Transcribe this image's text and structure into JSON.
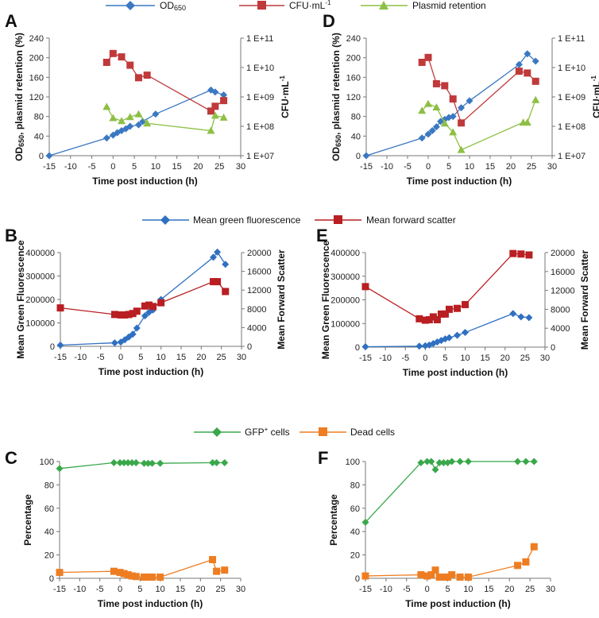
{
  "colors": {
    "od": "#3b78c2",
    "cfu": "#c0393b",
    "plasmid": "#8dbf45",
    "fluo": "#2f70c1",
    "scatter": "#b81e22",
    "gfp": "#39a84a",
    "dead": "#ee7d22",
    "axis": "#777777"
  },
  "legends": {
    "row1": {
      "od": "OD650",
      "cfu": "CFU·mL-1",
      "plasmid": "Plasmid retention"
    },
    "row2": {
      "fluo": "Mean green fluorescence",
      "scatter": "Mean forward scatter"
    },
    "row3": {
      "gfp": "GFP+ cells",
      "dead": "Dead cells"
    }
  },
  "chart_data": [
    {
      "panel": "A",
      "type": "line",
      "xlabel": "Time post induction (h)",
      "ylabel": "OD650, plasmid retention (%)",
      "y2label": "CFU·mL-1",
      "xlim": [
        -15,
        30
      ],
      "xticks": [
        "-15",
        "-10",
        "-5",
        "0",
        "5",
        "10",
        "15",
        "20",
        "25",
        "30"
      ],
      "ylim": [
        0,
        240
      ],
      "yticks": [
        "0",
        "40",
        "80",
        "120",
        "160",
        "200",
        "240"
      ],
      "y2scale": "log",
      "y2lim_log10": [
        7,
        11
      ],
      "y2ticks": [
        "1 E+07",
        "1 E+08",
        "1 E+09",
        "1 E+10",
        "1 E+11"
      ],
      "series": [
        {
          "name": "OD650",
          "axis": "left",
          "marker": "diamond",
          "colorKey": "od",
          "x": [
            -15,
            -1.5,
            0,
            1,
            2,
            3,
            4,
            6,
            7,
            10,
            23,
            24,
            26
          ],
          "y": [
            0,
            36,
            42,
            47,
            51,
            55,
            60,
            63,
            70,
            85,
            134,
            130,
            124
          ]
        },
        {
          "name": "CFU·mL-1",
          "axis": "right",
          "marker": "square",
          "colorKey": "cfu",
          "x": [
            -1.5,
            0,
            2,
            4,
            6,
            8,
            23,
            24,
            26
          ],
          "y": [
            15000000000.0,
            30000000000.0,
            23000000000.0,
            12000000000.0,
            4500000000.0,
            5500000000.0,
            330000000.0,
            480000000.0,
            750000000.0
          ]
        },
        {
          "name": "Plasmid retention",
          "axis": "left",
          "marker": "triangle",
          "colorKey": "plasmid",
          "x": [
            -1.5,
            0,
            2,
            4,
            6,
            8,
            23,
            24,
            26
          ],
          "y": [
            100,
            77,
            71,
            79,
            85,
            66,
            51,
            82,
            78
          ]
        }
      ]
    },
    {
      "panel": "D",
      "type": "line",
      "xlabel": "Time post induction (h)",
      "ylabel": "OD650, plasmid retention (%)",
      "y2label": "CFU·mL-1",
      "xlim": [
        -15,
        30
      ],
      "xticks": [
        "-15",
        "-10",
        "-5",
        "0",
        "5",
        "10",
        "15",
        "20",
        "25",
        "30"
      ],
      "ylim": [
        0,
        240
      ],
      "yticks": [
        "0",
        "40",
        "80",
        "120",
        "160",
        "200",
        "240"
      ],
      "y2scale": "log",
      "y2lim_log10": [
        7,
        11
      ],
      "y2ticks": [
        "1 E+07",
        "1 E+08",
        "1 E+09",
        "1 E+10",
        "1 E+11"
      ],
      "series": [
        {
          "name": "OD650",
          "axis": "left",
          "marker": "diamond",
          "colorKey": "od",
          "x": [
            -15,
            -1.5,
            0,
            1,
            2,
            3,
            4,
            5,
            6,
            8,
            10,
            22,
            24,
            26
          ],
          "y": [
            0,
            36,
            44,
            51,
            59,
            70,
            74,
            78,
            80,
            98,
            112,
            186,
            208,
            193
          ]
        },
        {
          "name": "CFU·mL-1",
          "axis": "right",
          "marker": "square",
          "colorKey": "cfu",
          "x": [
            -1.5,
            0,
            2,
            4,
            6,
            8,
            22,
            24,
            26
          ],
          "y": [
            15000000000.0,
            22000000000.0,
            2800000000.0,
            2400000000.0,
            850000000.0,
            130000000.0,
            7500000000.0,
            6500000000.0,
            3400000000.0
          ]
        },
        {
          "name": "Plasmid retention",
          "axis": "left",
          "marker": "triangle",
          "colorKey": "plasmid",
          "x": [
            -1.5,
            0,
            2,
            4,
            6,
            8,
            23,
            24,
            26
          ],
          "y": [
            92,
            106,
            99,
            66,
            48,
            12,
            68,
            68,
            114
          ]
        }
      ]
    },
    {
      "panel": "B",
      "type": "line",
      "xlabel": "Time post induction (h)",
      "ylabel": "Mean Green Fluorescence",
      "y2label": "Mean Forward Scatter",
      "xlim": [
        -15,
        30
      ],
      "xticks": [
        "-15",
        "-10",
        "-5",
        "0",
        "5",
        "10",
        "15",
        "20",
        "25",
        "30"
      ],
      "ylim": [
        0,
        400000
      ],
      "yticks": [
        "0",
        "100000",
        "200000",
        "300000",
        "400000"
      ],
      "y2lim": [
        0,
        20000
      ],
      "y2ticks": [
        "0",
        "4000",
        "8000",
        "12000",
        "16000",
        "20000"
      ],
      "series": [
        {
          "name": "Mean green fluorescence",
          "axis": "left",
          "marker": "diamond",
          "colorKey": "fluo",
          "x": [
            -15,
            -1.5,
            0,
            1,
            2,
            3,
            4,
            6,
            7,
            8,
            10,
            23,
            24,
            26
          ],
          "y": [
            5000,
            15000,
            18000,
            28000,
            40000,
            52000,
            78000,
            130000,
            145000,
            155000,
            200000,
            380000,
            402000,
            350000
          ]
        },
        {
          "name": "Mean forward scatter",
          "axis": "right",
          "marker": "square",
          "colorKey": "scatter",
          "x": [
            -15,
            -1.5,
            0,
            1,
            2,
            3,
            4,
            6,
            7,
            8,
            10,
            23,
            24,
            26
          ],
          "y": [
            8200,
            6800,
            6700,
            6700,
            6800,
            7000,
            7500,
            8600,
            8800,
            8500,
            9300,
            13800,
            13800,
            11700
          ]
        }
      ]
    },
    {
      "panel": "E",
      "type": "line",
      "xlabel": "Time post induction (h)",
      "ylabel": "Mean Green Fluorescence",
      "y2label": "Mean Forward Scatter",
      "xlim": [
        -15,
        30
      ],
      "xticks": [
        "-15",
        "-10",
        "-5",
        "0",
        "5",
        "10",
        "15",
        "20",
        "25",
        "30"
      ],
      "ylim": [
        0,
        400000
      ],
      "yticks": [
        "0",
        "100000",
        "200000",
        "300000",
        "400000"
      ],
      "y2lim": [
        0,
        20000
      ],
      "y2ticks": [
        "0",
        "4000",
        "8000",
        "12000",
        "16000",
        "20000"
      ],
      "series": [
        {
          "name": "Mean green fluorescence",
          "axis": "left",
          "marker": "diamond",
          "colorKey": "fluo",
          "x": [
            -15,
            -1.5,
            0,
            1,
            2,
            3,
            4,
            5,
            6,
            8,
            10,
            22,
            24,
            26
          ],
          "y": [
            1500,
            4000,
            6000,
            9000,
            15000,
            22000,
            28000,
            35000,
            40000,
            50000,
            62000,
            142000,
            128000,
            125000
          ]
        },
        {
          "name": "Mean forward scatter",
          "axis": "right",
          "marker": "square",
          "colorKey": "scatter",
          "x": [
            -15,
            -1.5,
            0,
            1,
            2,
            3,
            4,
            5,
            6,
            8,
            10,
            22,
            24,
            26
          ],
          "y": [
            12800,
            6000,
            5700,
            5800,
            6400,
            5800,
            7000,
            7000,
            8000,
            8200,
            9000,
            19800,
            19700,
            19500
          ]
        }
      ]
    },
    {
      "panel": "C",
      "type": "line",
      "xlabel": "Time post induction (h)",
      "ylabel": "Percentage",
      "xlim": [
        -15,
        30
      ],
      "xticks": [
        "-15",
        "-10",
        "-5",
        "0",
        "5",
        "10",
        "15",
        "20",
        "25",
        "30"
      ],
      "ylim": [
        0,
        100
      ],
      "yticks": [
        "0",
        "20",
        "40",
        "60",
        "80",
        "100"
      ],
      "series": [
        {
          "name": "GFP+ cells",
          "axis": "left",
          "marker": "diamond",
          "colorKey": "gfp",
          "x": [
            -15,
            -1.5,
            0,
            1,
            2,
            3,
            4,
            6,
            7,
            8,
            10,
            23,
            24,
            26
          ],
          "y": [
            94,
            99,
            99,
            99,
            99,
            99,
            99,
            98.5,
            98.5,
            98.5,
            98.5,
            99,
            99,
            99
          ]
        },
        {
          "name": "Dead cells",
          "axis": "left",
          "marker": "square",
          "colorKey": "dead",
          "x": [
            -15,
            -1.5,
            0,
            1,
            2,
            3,
            4,
            6,
            7,
            8,
            10,
            23,
            24,
            26
          ],
          "y": [
            5,
            6,
            5,
            4,
            3,
            2,
            1.5,
            1,
            1,
            1,
            1,
            16,
            6,
            7
          ]
        }
      ]
    },
    {
      "panel": "F",
      "type": "line",
      "xlabel": "Time post induction (h)",
      "ylabel": "Percentage",
      "xlim": [
        -15,
        30
      ],
      "xticks": [
        "-15",
        "-10",
        "-5",
        "0",
        "5",
        "10",
        "15",
        "20",
        "25",
        "30"
      ],
      "ylim": [
        0,
        100
      ],
      "yticks": [
        "0",
        "20",
        "40",
        "60",
        "80",
        "100"
      ],
      "series": [
        {
          "name": "GFP+ cells",
          "axis": "left",
          "marker": "diamond",
          "colorKey": "gfp",
          "x": [
            -15,
            -1.5,
            0,
            1,
            2,
            3,
            4,
            5,
            6,
            8,
            10,
            22,
            24,
            26
          ],
          "y": [
            48,
            99,
            100,
            100,
            93,
            99,
            99,
            99,
            100,
            100,
            100,
            100,
            100,
            100
          ]
        },
        {
          "name": "Dead cells",
          "axis": "left",
          "marker": "square",
          "colorKey": "dead",
          "x": [
            -15,
            -1.5,
            0,
            1,
            2,
            3,
            4,
            5,
            6,
            8,
            10,
            22,
            24,
            26
          ],
          "y": [
            2,
            3,
            2,
            3,
            7,
            1,
            1,
            1,
            3,
            1,
            1,
            11,
            14,
            27
          ]
        }
      ]
    }
  ]
}
